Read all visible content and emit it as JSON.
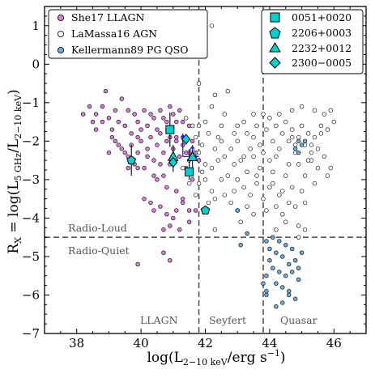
{
  "chart_data": {
    "type": "scatter",
    "xlabel": "log(L$_{2-10 keV}$/erg s$^{-1}$)",
    "xlabel_main": "log(L",
    "xlabel_sub": "2−10 keV",
    "xlabel_tail": "/erg s",
    "xlabel_sup": "−1",
    "ylabel_main": "R",
    "ylabel_sub1": "X",
    "ylabel_mid": " = log(L",
    "ylabel_sub2": "5 GHz",
    "ylabel_mid2": "/L",
    "ylabel_sub3": "2−10 keV",
    "ylabel_end": ")",
    "xlim": [
      37,
      47
    ],
    "ylim": [
      -7,
      1.5
    ],
    "xticks": [
      38,
      40,
      42,
      44,
      46
    ],
    "xtick_labels": [
      "38",
      "40",
      "42",
      "44",
      "46"
    ],
    "yticks": [
      1,
      0,
      -1,
      -2,
      -3,
      -4,
      -5,
      -6,
      -7
    ],
    "ytick_labels": [
      "1",
      "0",
      "−1",
      "−2",
      "−3",
      "−4",
      "−5",
      "−6",
      "−7"
    ],
    "colors": {
      "llagn": "#d77fd6",
      "agn": "#ffffff",
      "pgqso": "#6aaee0",
      "target": "#00d2d2",
      "arrow": "#2020dd",
      "guide": "#555555"
    },
    "legend_left": {
      "placement": "top-left",
      "entries": [
        {
          "label": "She17 LLAGN",
          "series": "llagn"
        },
        {
          "label": "LaMassa16 AGN",
          "series": "agn"
        },
        {
          "label": "Kellermann89 PG QSO",
          "series": "pgqso"
        }
      ]
    },
    "legend_right": {
      "placement": "top-right",
      "entries": [
        {
          "label": "0051+0020",
          "marker": "square"
        },
        {
          "label": "2206+0003",
          "marker": "pentagon"
        },
        {
          "label": "2232+0012",
          "marker": "triangle"
        },
        {
          "label": "2300−0005",
          "marker": "diamond"
        }
      ]
    },
    "guides": {
      "radio_loud_threshold": -4.5,
      "llagn_seyfert_boundary": 41.8,
      "seyfert_quasar_boundary": 43.8
    },
    "region_labels": {
      "radio_loud": "Radio-Loud",
      "radio_quiet": "Radio-Quiet",
      "llagn": "LLAGN",
      "seyfert": "Seyfert",
      "quasar": "Quasar"
    },
    "series": [
      {
        "name": "She17 LLAGN",
        "key": "llagn",
        "points": [
          [
            38.2,
            -1.3
          ],
          [
            38.4,
            -1.1
          ],
          [
            38.5,
            -1.5
          ],
          [
            38.6,
            -1.3
          ],
          [
            38.8,
            -1.1
          ],
          [
            38.9,
            -0.7
          ],
          [
            39.0,
            -1.4
          ],
          [
            39.1,
            -1.7
          ],
          [
            39.2,
            -1.2
          ],
          [
            39.3,
            -1.5
          ],
          [
            39.4,
            -0.9
          ],
          [
            39.5,
            -1.6
          ],
          [
            39.6,
            -1.2
          ],
          [
            39.7,
            -1.8
          ],
          [
            39.8,
            -1.3
          ],
          [
            39.9,
            -1.9
          ],
          [
            39.3,
            -2.1
          ],
          [
            39.5,
            -2.3
          ],
          [
            39.2,
            -2.0
          ],
          [
            39.6,
            -2.4
          ],
          [
            39.7,
            -2.1
          ],
          [
            39.8,
            -2.6
          ],
          [
            39.9,
            -2.3
          ],
          [
            40.0,
            -2.0
          ],
          [
            40.1,
            -2.7
          ],
          [
            40.2,
            -2.2
          ],
          [
            40.3,
            -1.9
          ],
          [
            40.4,
            -2.5
          ],
          [
            40.5,
            -2.1
          ],
          [
            40.6,
            -1.8
          ],
          [
            40.7,
            -2.3
          ],
          [
            40.8,
            -2.0
          ],
          [
            40.9,
            -2.6
          ],
          [
            41.0,
            -2.2
          ],
          [
            41.1,
            -1.9
          ],
          [
            41.2,
            -2.4
          ],
          [
            41.3,
            -2.1
          ],
          [
            41.4,
            -2.7
          ],
          [
            41.5,
            -1.6
          ],
          [
            41.3,
            -1.5
          ],
          [
            41.1,
            -2.0
          ],
          [
            40.9,
            -1.9
          ],
          [
            40.8,
            -1.5
          ],
          [
            40.4,
            -1.4
          ],
          [
            40.5,
            -1.7
          ],
          [
            40.2,
            -1.6
          ],
          [
            40.1,
            -1.2
          ],
          [
            39.9,
            -1.5
          ],
          [
            40.0,
            -1.7
          ],
          [
            40.6,
            -1.2
          ],
          [
            40.3,
            -1.3
          ],
          [
            40.7,
            -1.4
          ],
          [
            40.9,
            -1.1
          ],
          [
            41.0,
            -1.3
          ],
          [
            41.1,
            -1.5
          ],
          [
            41.2,
            -1.2
          ],
          [
            41.3,
            -1.9
          ],
          [
            41.5,
            -2.3
          ],
          [
            41.6,
            -2.0
          ],
          [
            41.4,
            -2.3
          ],
          [
            40.1,
            -3.5
          ],
          [
            40.3,
            -3.6
          ],
          [
            40.4,
            -3.8
          ],
          [
            40.6,
            -3.7
          ],
          [
            40.8,
            -3.9
          ],
          [
            41.0,
            -4.0
          ],
          [
            41.1,
            -3.8
          ],
          [
            41.3,
            -3.6
          ],
          [
            41.5,
            -3.8
          ],
          [
            41.7,
            -3.8
          ],
          [
            41.5,
            -4.1
          ],
          [
            40.7,
            -4.3
          ],
          [
            40.9,
            -4.2
          ],
          [
            41.2,
            -4.3
          ],
          [
            40.5,
            -3.0
          ],
          [
            40.8,
            -3.2
          ],
          [
            41.1,
            -3.3
          ],
          [
            41.3,
            -3.5
          ],
          [
            41.6,
            -3.0
          ],
          [
            41.8,
            -2.5
          ],
          [
            40.7,
            -4.9
          ],
          [
            40.9,
            -5.1
          ],
          [
            39.9,
            -5.2
          ],
          [
            39.4,
            -2.2
          ],
          [
            39.0,
            -2.3
          ],
          [
            39.1,
            -1.9
          ],
          [
            38.8,
            -1.5
          ],
          [
            38.6,
            -1.7
          ],
          [
            39.6,
            -2.7
          ],
          [
            41.7,
            -2.3
          ],
          [
            39.9,
            -2.7
          ],
          [
            40.2,
            -2.4
          ],
          [
            40.4,
            -2.9
          ],
          [
            40.7,
            -2.9
          ],
          [
            40.6,
            -2.6
          ]
        ]
      },
      {
        "name": "LaMassa16 AGN",
        "key": "agn",
        "points": [
          [
            41.8,
            -0.5
          ],
          [
            42.3,
            -0.8
          ],
          [
            42.7,
            -0.7
          ],
          [
            42.2,
            -1.1
          ],
          [
            41.6,
            -1.6
          ],
          [
            41.4,
            -1.4
          ],
          [
            41.8,
            -1.6
          ],
          [
            42.0,
            -1.5
          ],
          [
            41.7,
            -1.9
          ],
          [
            41.9,
            -2.1
          ],
          [
            42.1,
            -1.8
          ],
          [
            42.3,
            -2.2
          ],
          [
            42.4,
            -1.9
          ],
          [
            41.9,
            -2.8
          ],
          [
            42.0,
            -3.0
          ],
          [
            42.2,
            -3.3
          ],
          [
            42.0,
            -3.8
          ],
          [
            41.8,
            -3.1
          ],
          [
            41.5,
            -3.1
          ],
          [
            41.7,
            -3.4
          ],
          [
            42.4,
            -2.5
          ],
          [
            42.6,
            -2.4
          ],
          [
            42.5,
            -2.0
          ],
          [
            42.8,
            -2.2
          ],
          [
            42.9,
            -1.8
          ],
          [
            43.0,
            -2.0
          ],
          [
            43.2,
            -1.5
          ],
          [
            43.3,
            -1.8
          ],
          [
            43.5,
            -1.3
          ],
          [
            43.5,
            -1.9
          ],
          [
            43.6,
            -1.6
          ],
          [
            43.7,
            -2.1
          ],
          [
            43.8,
            -1.3
          ],
          [
            43.9,
            -1.7
          ],
          [
            44.0,
            -1.4
          ],
          [
            44.1,
            -2.0
          ],
          [
            44.2,
            -1.6
          ],
          [
            44.3,
            -2.2
          ],
          [
            44.4,
            -1.8
          ],
          [
            44.5,
            -1.5
          ],
          [
            44.6,
            -2.0
          ],
          [
            44.7,
            -1.7
          ],
          [
            44.8,
            -2.3
          ],
          [
            44.9,
            -1.9
          ],
          [
            45.0,
            -1.6
          ],
          [
            45.1,
            -2.1
          ],
          [
            45.2,
            -1.8
          ],
          [
            45.3,
            -2.3
          ],
          [
            45.4,
            -1.9
          ],
          [
            45.5,
            -2.2
          ],
          [
            45.6,
            -1.8
          ],
          [
            45.7,
            -1.3
          ],
          [
            45.8,
            -1.7
          ],
          [
            45.9,
            -1.2
          ],
          [
            46.0,
            -1.5
          ],
          [
            45.4,
            -1.2
          ],
          [
            45.0,
            -1.1
          ],
          [
            44.7,
            -1.2
          ],
          [
            44.3,
            -1.3
          ],
          [
            44.0,
            -2.5
          ],
          [
            43.7,
            -2.7
          ],
          [
            43.5,
            -2.4
          ],
          [
            43.3,
            -2.8
          ],
          [
            43.1,
            -2.5
          ],
          [
            43.0,
            -3.0
          ],
          [
            42.7,
            -2.9
          ],
          [
            42.9,
            -3.3
          ],
          [
            43.2,
            -3.2
          ],
          [
            43.4,
            -3.4
          ],
          [
            43.6,
            -3.1
          ],
          [
            43.8,
            -3.5
          ],
          [
            44.1,
            -3.1
          ],
          [
            44.3,
            -3.4
          ],
          [
            44.5,
            -2.9
          ],
          [
            44.7,
            -3.2
          ],
          [
            44.9,
            -2.6
          ],
          [
            45.1,
            -2.9
          ],
          [
            45.3,
            -2.5
          ],
          [
            45.5,
            -2.7
          ],
          [
            45.7,
            -2.4
          ],
          [
            45.8,
            -2.9
          ],
          [
            45.0,
            -3.3
          ],
          [
            44.8,
            -3.7
          ],
          [
            44.6,
            -3.6
          ],
          [
            44.4,
            -3.9
          ],
          [
            44.2,
            -3.7
          ],
          [
            43.9,
            -3.8
          ],
          [
            43.5,
            -3.9
          ],
          [
            43.3,
            -3.7
          ],
          [
            43.0,
            -3.8
          ],
          [
            42.8,
            -3.6
          ],
          [
            42.6,
            -3.4
          ],
          [
            42.5,
            -3.0
          ],
          [
            42.3,
            -3.5
          ],
          [
            42.2,
            -2.7
          ],
          [
            42.3,
            -4.3
          ],
          [
            44.2,
            -4.3
          ],
          [
            44.5,
            -4.1
          ],
          [
            44.9,
            -4.2
          ],
          [
            44.9,
            -4.5
          ],
          [
            45.1,
            -4.3
          ],
          [
            42.2,
            1.0
          ],
          [
            41.6,
            -2.2
          ],
          [
            41.5,
            -2.5
          ],
          [
            41.3,
            -2.7
          ],
          [
            45.3,
            -2.1
          ],
          [
            45.6,
            -1.6
          ],
          [
            44.1,
            -2.8
          ],
          [
            43.4,
            -2.2
          ],
          [
            42.5,
            -1.6
          ],
          [
            44.6,
            -2.6
          ],
          [
            44.2,
            -2.4
          ],
          [
            44.8,
            -2.1
          ],
          [
            45.2,
            -2.5
          ],
          [
            42.1,
            -3.6
          ],
          [
            43.1,
            -4.1
          ],
          [
            44.4,
            -3.3
          ],
          [
            45.1,
            -3.6
          ],
          [
            44.0,
            -3.2
          ],
          [
            42.9,
            -2.6
          ],
          [
            42.0,
            -2.6
          ],
          [
            41.8,
            -2.3
          ],
          [
            43.6,
            -2.9
          ],
          [
            43.8,
            -2.3
          ],
          [
            45.4,
            -3.1
          ],
          [
            44.7,
            -1.9
          ],
          [
            42.6,
            -1.3
          ],
          [
            43.0,
            -1.6
          ],
          [
            45.9,
            -2.7
          ],
          [
            43.2,
            -2.4
          ]
        ]
      },
      {
        "name": "Kellermann89 PG QSO",
        "key": "pgqso",
        "points": [
          [
            43.0,
            -3.8
          ],
          [
            43.9,
            -4.6
          ],
          [
            44.1,
            -4.5
          ],
          [
            44.3,
            -4.6
          ],
          [
            44.0,
            -4.8
          ],
          [
            44.2,
            -4.9
          ],
          [
            44.5,
            -4.7
          ],
          [
            44.4,
            -5.0
          ],
          [
            44.6,
            -5.2
          ],
          [
            44.8,
            -5.1
          ],
          [
            44.1,
            -5.3
          ],
          [
            44.3,
            -5.4
          ],
          [
            44.5,
            -5.5
          ],
          [
            44.7,
            -5.4
          ],
          [
            44.9,
            -5.6
          ],
          [
            44.2,
            -5.7
          ],
          [
            44.4,
            -5.8
          ],
          [
            44.6,
            -5.9
          ],
          [
            44.8,
            -6.1
          ],
          [
            44.9,
            -5.3
          ],
          [
            43.9,
            -5.5
          ],
          [
            43.8,
            -5.7
          ],
          [
            43.9,
            -5.9
          ],
          [
            43.9,
            -6.0
          ],
          [
            44.0,
            -5.1
          ],
          [
            44.7,
            -4.8
          ],
          [
            45.0,
            -4.9
          ],
          [
            44.4,
            -6.2
          ],
          [
            44.6,
            -6.0
          ],
          [
            44.2,
            -6.3
          ],
          [
            44.9,
            -2.0
          ],
          [
            45.0,
            -2.1
          ],
          [
            44.8,
            -2.2
          ],
          [
            45.1,
            -2.0
          ],
          [
            44.9,
            -2.3
          ],
          [
            43.3,
            -4.4
          ],
          [
            43.1,
            -4.7
          ]
        ]
      }
    ],
    "targets": [
      {
        "label": "0051+0020",
        "marker": "square",
        "points": [
          [
            40.9,
            -1.7
          ],
          [
            41.5,
            -2.8
          ]
        ]
      },
      {
        "label": "2206+0003",
        "marker": "pentagon",
        "points": [
          [
            39.7,
            -2.5
          ],
          [
            42.0,
            -3.8
          ]
        ]
      },
      {
        "label": "2232+0012",
        "marker": "triangle",
        "points": [
          [
            41.0,
            -2.4
          ],
          [
            41.6,
            -2.4
          ]
        ]
      },
      {
        "label": "2300−0005",
        "marker": "diamond",
        "points": [
          [
            41.0,
            -2.55
          ],
          [
            41.4,
            -1.95
          ]
        ]
      }
    ],
    "error_bars": [
      {
        "x": 40.9,
        "y": -1.7,
        "yerr": 0.45
      },
      {
        "x": 39.7,
        "y": -2.5,
        "yerr": 0.4
      },
      {
        "x": 41.0,
        "y": -2.45,
        "yerr": 0.35
      },
      {
        "x": 41.5,
        "y": -2.6,
        "yerr": 0.4
      }
    ],
    "limit_arrows": [
      {
        "x1": 41.3,
        "y1": -2.4,
        "x2": 41.3,
        "y2": -1.8
      },
      {
        "x1": 41.3,
        "y1": -2.4,
        "x2": 41.8,
        "y2": -2.4
      },
      {
        "x1": 41.6,
        "y1": -2.7,
        "x2": 41.6,
        "y2": -2.1
      }
    ]
  }
}
